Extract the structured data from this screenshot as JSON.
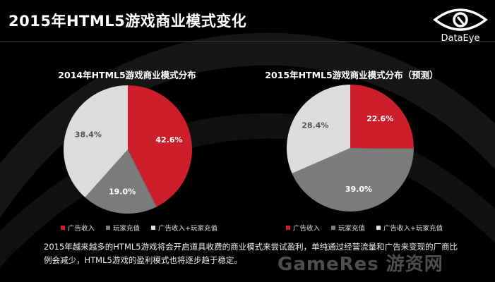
{
  "page": {
    "title": "2015年HTML5游戏商业模式变化",
    "logo_text": "DataEye",
    "description": "2015年越来越多的HTML5游戏将会开启道具收费的商业模式来尝试盈利，单纯通过经营流量和广告来变现的厂商比例会减少，HTML5游戏的盈利模式也将逐步趋于稳定。",
    "watermark": "GameRes 游资网"
  },
  "colors": {
    "red": "#cc1f2b",
    "gray": "#7b7b7b",
    "light": "#dcdcdc"
  },
  "chart_data": [
    {
      "type": "pie",
      "title": "2014年HTML5游戏商业模式分布",
      "labels": [
        "广告收入",
        "玩家充值",
        "广告收入+玩家充值"
      ],
      "values": [
        42.6,
        19.0,
        38.4
      ],
      "value_labels": [
        "42.6%",
        "19.0%",
        "38.4%"
      ],
      "legend": "bottom"
    },
    {
      "type": "pie",
      "title": "2015年HTML5游戏商业模式分布（预测）",
      "labels": [
        "广告收入",
        "玩家充值",
        "广告收入+玩家充值"
      ],
      "values": [
        22.6,
        39.0,
        28.4
      ],
      "value_labels": [
        "22.6%",
        "39.0%",
        "28.4%"
      ],
      "legend": "bottom"
    }
  ]
}
